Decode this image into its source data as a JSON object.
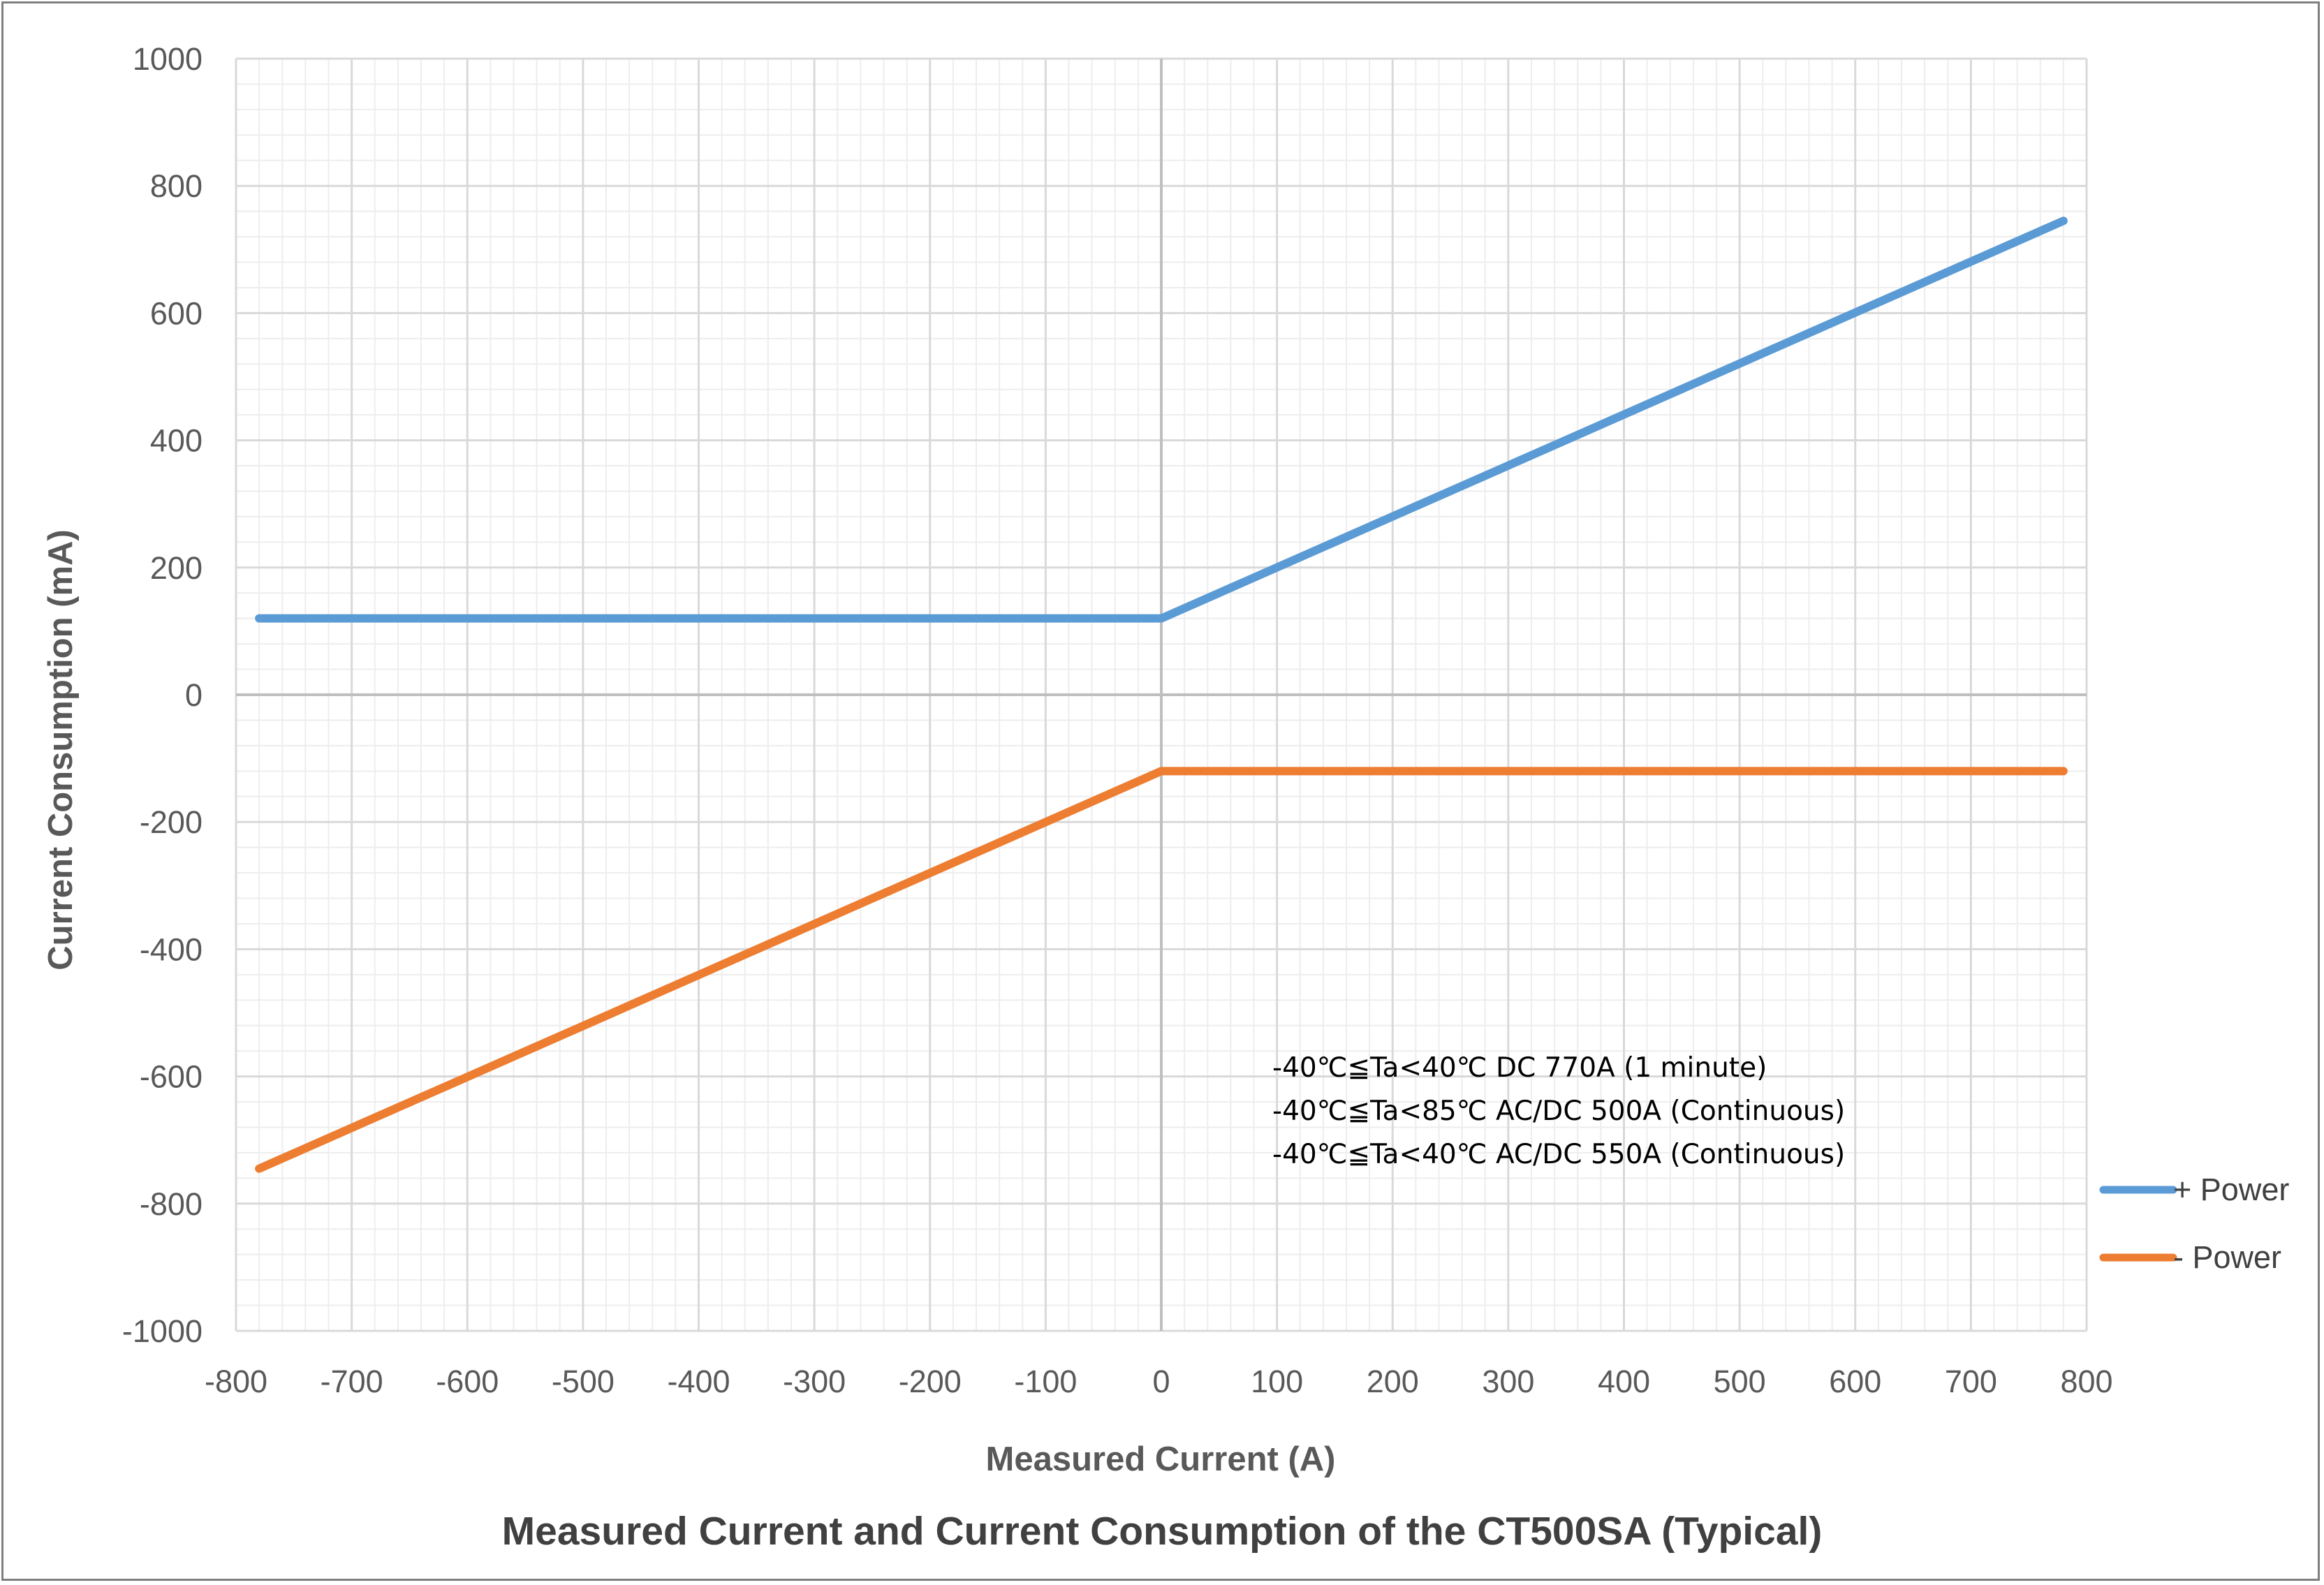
{
  "chart_data": {
    "type": "line",
    "title": "Measured Current and Current Consumption of the CT500SA (Typical)",
    "xlabel": "Measured Current (A)",
    "ylabel": "Current Consumption (mA)",
    "xlim": [
      -800,
      800
    ],
    "ylim": [
      -1000,
      1000
    ],
    "x_ticks": [
      -800,
      -700,
      -600,
      -500,
      -400,
      -300,
      -200,
      -100,
      0,
      100,
      200,
      300,
      400,
      500,
      600,
      700,
      800
    ],
    "y_ticks": [
      -1000,
      -800,
      -600,
      -400,
      -200,
      0,
      200,
      400,
      600,
      800,
      1000
    ],
    "grid": true,
    "legend_position": "right",
    "series": [
      {
        "name": "+ Power",
        "color": "#5b9bd5",
        "x": [
          -780,
          0,
          780
        ],
        "y": [
          120,
          120,
          745
        ]
      },
      {
        "name": "- Power",
        "color": "#ed7d31",
        "x": [
          -780,
          0,
          780
        ],
        "y": [
          -745,
          -120,
          -120
        ]
      }
    ],
    "annotations": [
      "-40℃≦Ta<40℃ DC 770A (1 minute)",
      "-40℃≦Ta<85℃ AC/DC 500A (Continuous)",
      "-40℃≦Ta<40℃ AC/DC 550A (Continuous)"
    ]
  }
}
